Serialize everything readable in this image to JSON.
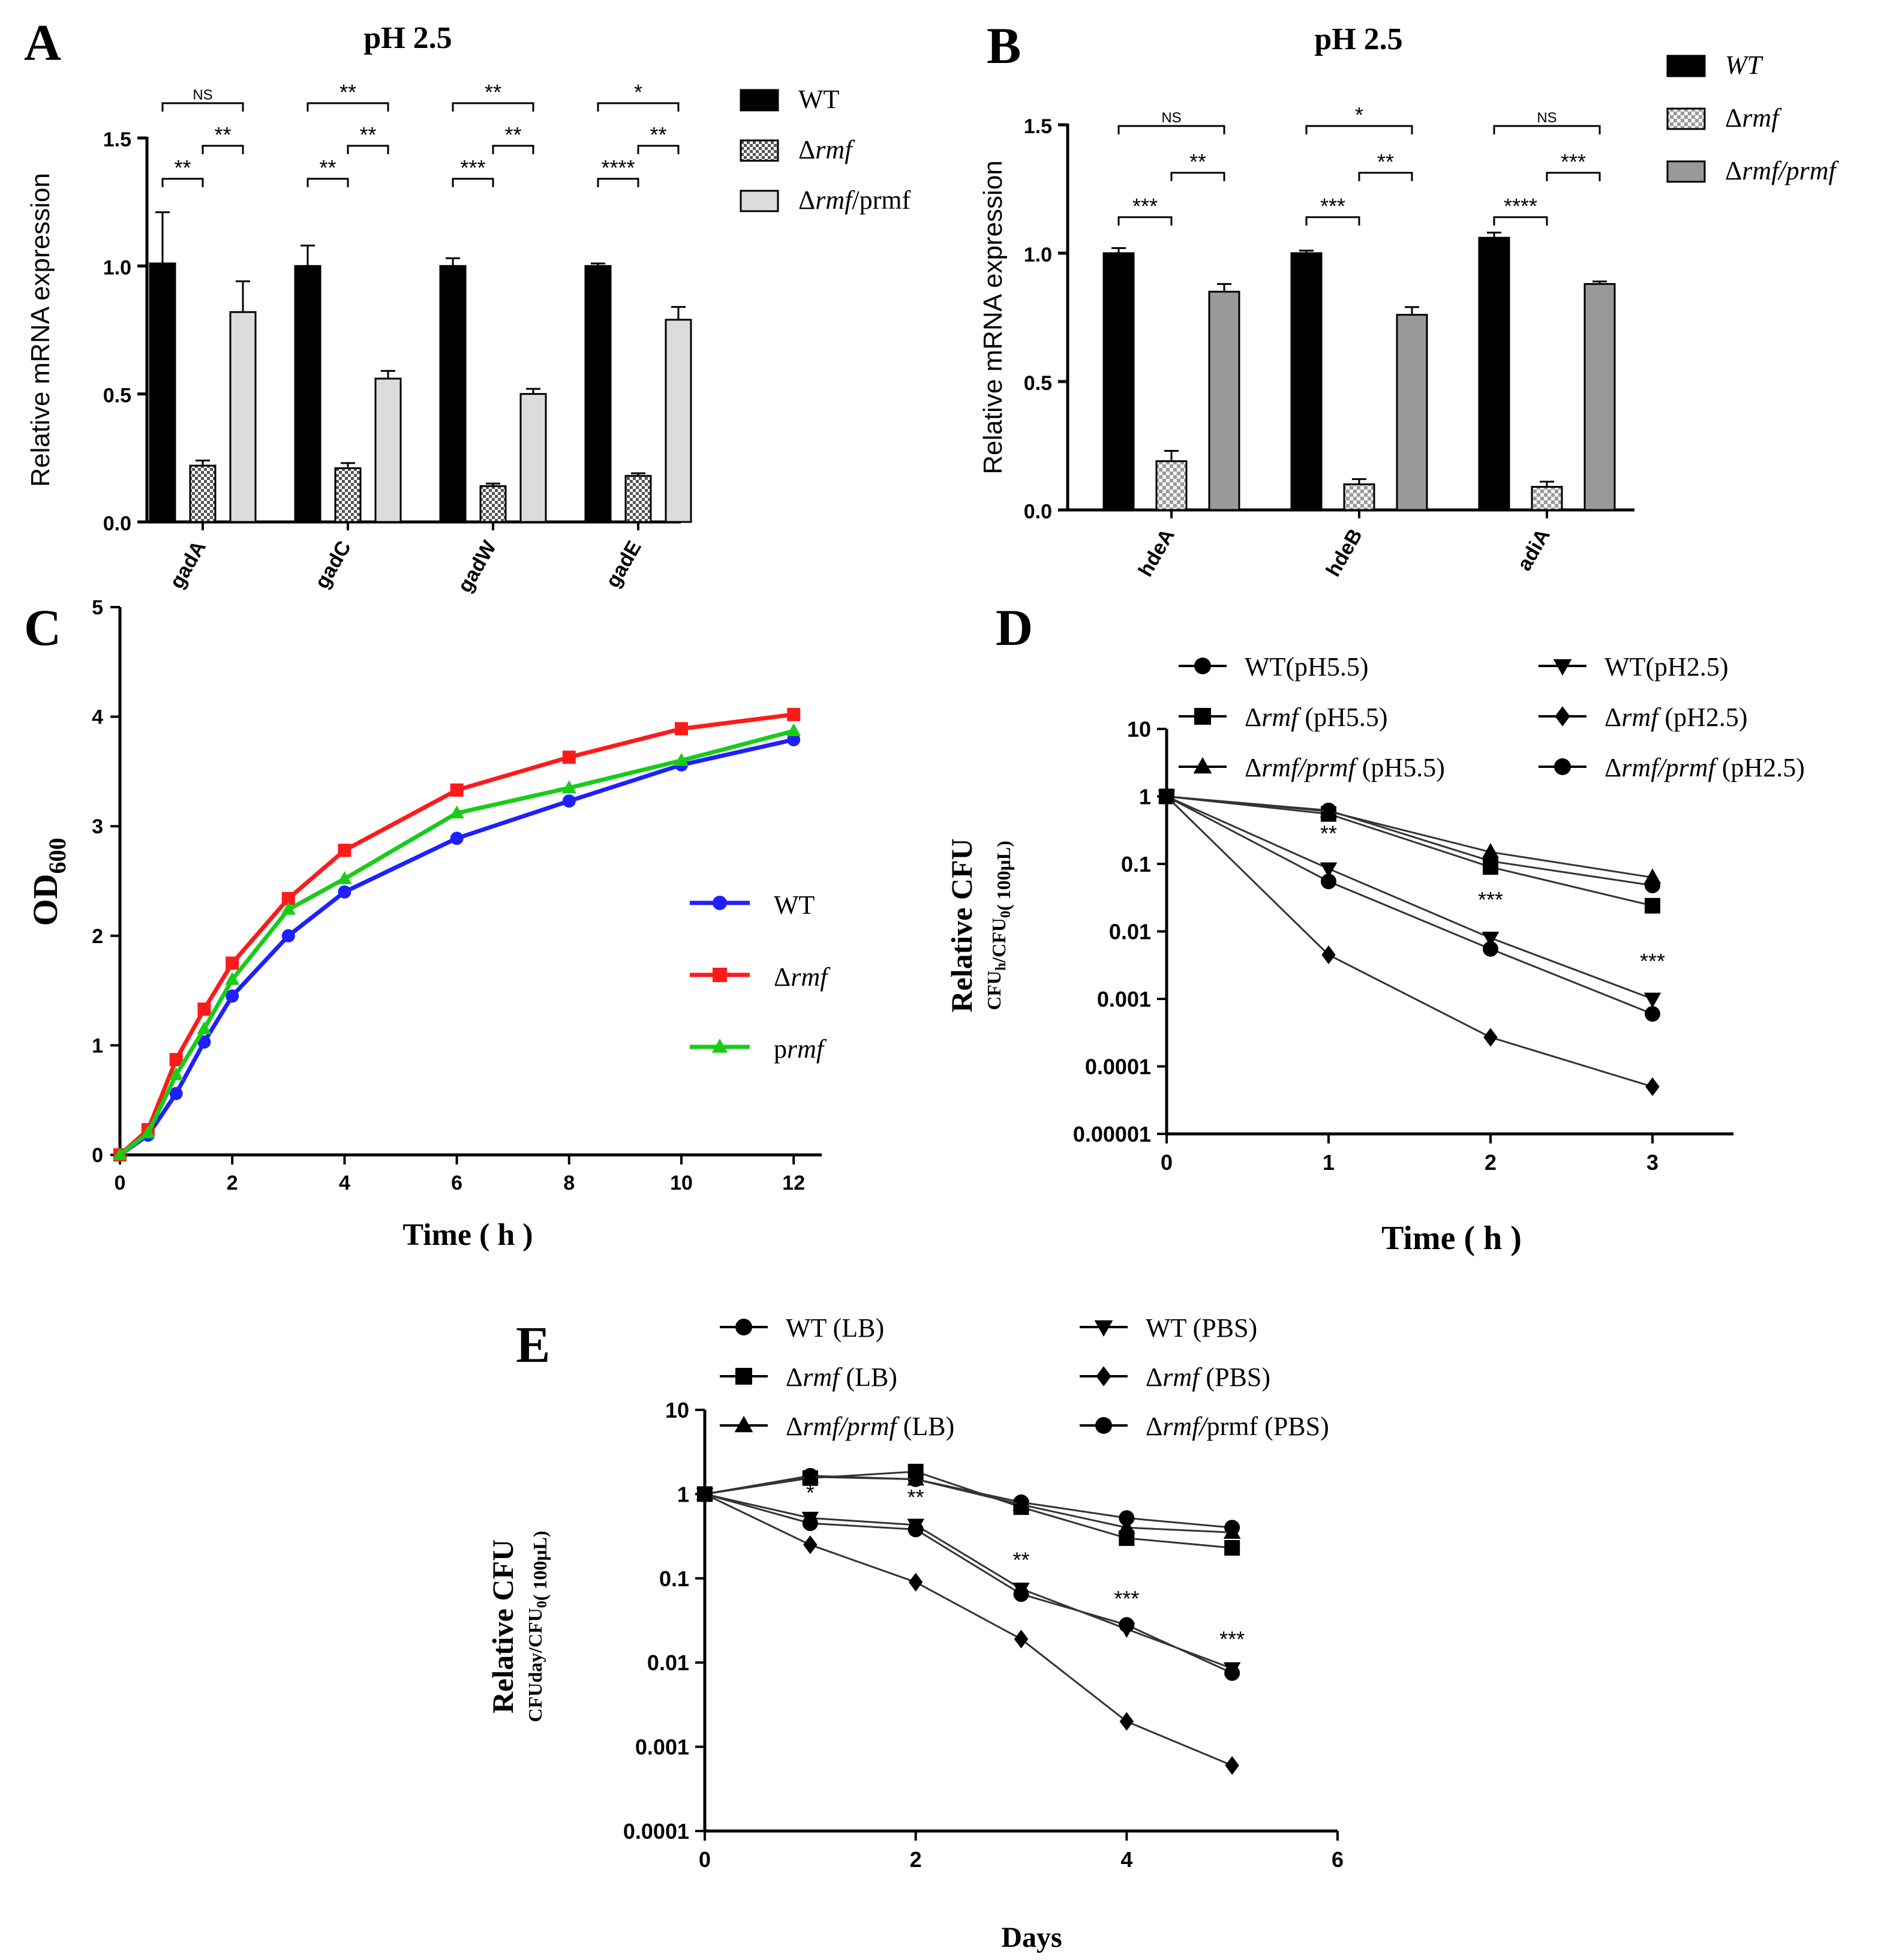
{
  "chart_data": [
    {
      "panel": "A",
      "type": "bar",
      "title": "pH  2.5",
      "ylabel": "Relative mRNA expression",
      "ylim": [
        0,
        1.5
      ],
      "yticks": [
        "0.0",
        "0.5",
        "1.0",
        "1.5"
      ],
      "categories": [
        "gadA",
        "gadC",
        "gadW",
        "gadE"
      ],
      "series": [
        {
          "name": "WT",
          "values": [
            1.01,
            1.0,
            1.0,
            1.0
          ],
          "errors": [
            0.2,
            0.08,
            0.03,
            0.01
          ],
          "color": "#000000"
        },
        {
          "name": "Δrmf",
          "values": [
            0.22,
            0.21,
            0.14,
            0.18
          ],
          "errors": [
            0.02,
            0.02,
            0.01,
            0.01
          ],
          "color": "#b0b0b0"
        },
        {
          "name": "Δrmf/prmf",
          "values": [
            0.82,
            0.56,
            0.5,
            0.79
          ],
          "errors": [
            0.12,
            0.03,
            0.02,
            0.05
          ],
          "color": "#dcdcdc"
        }
      ],
      "legend": [
        {
          "pre": "WT",
          "ital": "",
          "post": ""
        },
        {
          "pre": "Δ",
          "ital": "rmf",
          "post": ""
        },
        {
          "pre": "Δ",
          "ital": "rmf",
          "post": "/prmf"
        }
      ],
      "significance": [
        {
          "wt_ko": "**",
          "ko_comp": "**",
          "wt_comp": "NS"
        },
        {
          "wt_ko": "**",
          "ko_comp": "**",
          "wt_comp": "**"
        },
        {
          "wt_ko": "***",
          "ko_comp": "**",
          "wt_comp": "**"
        },
        {
          "wt_ko": "****",
          "ko_comp": "**",
          "wt_comp": "*"
        }
      ]
    },
    {
      "panel": "B",
      "type": "bar",
      "title": "pH  2.5",
      "ylabel": "Relative mRNA expression",
      "ylim": [
        0,
        1.5
      ],
      "yticks": [
        "0.0",
        "0.5",
        "1.0",
        "1.5"
      ],
      "categories": [
        "hdeA",
        "hdeB",
        "adiA"
      ],
      "series": [
        {
          "name": "WT",
          "values": [
            1.0,
            1.0,
            1.06
          ],
          "errors": [
            0.02,
            0.01,
            0.02
          ],
          "color": "#000000"
        },
        {
          "name": "Δrmf",
          "values": [
            0.19,
            0.1,
            0.09
          ],
          "errors": [
            0.04,
            0.02,
            0.02
          ],
          "color": "#e0e0e0"
        },
        {
          "name": "Δrmf/prmf",
          "values": [
            0.85,
            0.76,
            0.88
          ],
          "errors": [
            0.03,
            0.03,
            0.01
          ],
          "color": "#999999"
        }
      ],
      "legend": [
        {
          "pre": "",
          "ital": "WT",
          "post": ""
        },
        {
          "pre": "Δ",
          "ital": "rmf",
          "post": ""
        },
        {
          "pre": "Δ",
          "ital": "rmf/prmf",
          "post": ""
        }
      ],
      "significance": [
        {
          "wt_ko": "***",
          "ko_comp": "**",
          "wt_comp": "NS"
        },
        {
          "wt_ko": "***",
          "ko_comp": "**",
          "wt_comp": "*"
        },
        {
          "wt_ko": "****",
          "ko_comp": "***",
          "wt_comp": "NS"
        }
      ]
    },
    {
      "panel": "C",
      "type": "line",
      "title": "",
      "xlabel": "Time ( h )",
      "ylabel_main": "OD",
      "ylabel_sub": "600",
      "xlim": [
        0,
        12.5
      ],
      "ylim": [
        0,
        5
      ],
      "xticks": [
        "0",
        "2",
        "4",
        "6",
        "8",
        "10",
        "12"
      ],
      "yticks": [
        "0",
        "1",
        "2",
        "3",
        "4",
        "5"
      ],
      "x": [
        0,
        0.5,
        1,
        1.5,
        2,
        3,
        4,
        6,
        8,
        10,
        12
      ],
      "series": [
        {
          "name": "WT",
          "color": "#1f1fff",
          "marker": "circle",
          "values": [
            0,
            0.18,
            0.56,
            1.03,
            1.45,
            2.0,
            2.4,
            2.89,
            3.23,
            3.56,
            3.79
          ]
        },
        {
          "name": "Δrmf",
          "color": "#ff1a1a",
          "marker": "square",
          "values": [
            0,
            0.23,
            0.87,
            1.33,
            1.75,
            2.34,
            2.78,
            3.33,
            3.63,
            3.89,
            4.02
          ]
        },
        {
          "name": "prmf",
          "color": "#18cc18",
          "marker": "triangle",
          "values": [
            0,
            0.2,
            0.73,
            1.15,
            1.6,
            2.24,
            2.52,
            3.12,
            3.35,
            3.6,
            3.87
          ]
        }
      ],
      "legend": [
        {
          "pre": "WT",
          "ital": "",
          "post": ""
        },
        {
          "pre": "Δ",
          "ital": "rmf",
          "post": ""
        },
        {
          "pre": "p",
          "ital": "rmf",
          "post": ""
        }
      ]
    },
    {
      "panel": "D",
      "type": "line",
      "scale": "log",
      "xlabel": "Time ( h )",
      "ylabel_main": "Relative CFU",
      "ylabel_sub": "CFU<sub>h</sub>/CFU<sub>0</sub>( 100μL)",
      "xlim": [
        0,
        3.5
      ],
      "ylim_log": [
        -5,
        1
      ],
      "xticks": [
        "0",
        "1",
        "2",
        "3"
      ],
      "yticks": [
        "10",
        "1",
        "0.1",
        "0.01",
        "0.001",
        "0.0001",
        "0.00001"
      ],
      "x": [
        0,
        1,
        2,
        3
      ],
      "series": [
        {
          "name": "WT(pH5.5)",
          "marker": "circle",
          "values": [
            1,
            0.62,
            0.11,
            0.048
          ]
        },
        {
          "name": "Δrmf(pH5.5)",
          "marker": "square",
          "values": [
            1,
            0.55,
            0.09,
            0.024
          ]
        },
        {
          "name": "Δrmf/prmf(pH5.5)",
          "marker": "triangle",
          "values": [
            1,
            0.6,
            0.15,
            0.063
          ]
        },
        {
          "name": "WT(pH2.5)",
          "marker": "triangle-down",
          "values": [
            1,
            0.085,
            0.008,
            0.001
          ]
        },
        {
          "name": "Δrmf(pH2.5)",
          "marker": "diamond",
          "values": [
            1,
            0.0045,
            0.00027,
            5e-05
          ]
        },
        {
          "name": "Δrmf/prmf(pH2.5)",
          "marker": "circle",
          "values": [
            1,
            0.055,
            0.0055,
            0.0006
          ]
        }
      ],
      "legend": [
        {
          "pre": "WT(pH5.5)",
          "ital": "",
          "post": ""
        },
        {
          "pre": "Δ",
          "ital": "rmf",
          "post": " (pH5.5)"
        },
        {
          "pre": "Δ",
          "ital": "rmf/prmf",
          "post": " (pH5.5)"
        },
        {
          "pre": "WT(pH2.5)",
          "ital": "",
          "post": ""
        },
        {
          "pre": "Δ",
          "ital": "rmf",
          "post": " (pH2.5)"
        },
        {
          "pre": "Δ",
          "ital": "rmf/prmf",
          "post": " (pH2.5)"
        }
      ],
      "annotations": [
        {
          "x": 1,
          "y": 0.22,
          "text": "**"
        },
        {
          "x": 2,
          "y": 0.023,
          "text": "***"
        },
        {
          "x": 3,
          "y": 0.0028,
          "text": "***"
        }
      ]
    },
    {
      "panel": "E",
      "type": "line",
      "scale": "log",
      "xlabel": "Days",
      "ylabel_main": "Relative CFU",
      "ylabel_sub": "CFUday/CFU<sub>0</sub>( 100μL)",
      "xlim": [
        0,
        6
      ],
      "ylim_log": [
        -4,
        1
      ],
      "xticks": [
        "0",
        "2",
        "4",
        "6"
      ],
      "yticks": [
        "10",
        "1",
        "0.1",
        "0.01",
        "0.001",
        "0.0001"
      ],
      "x": [
        0,
        1,
        2,
        3,
        4,
        5
      ],
      "series": [
        {
          "name": "WT (LB)",
          "marker": "circle",
          "values": [
            1,
            1.65,
            1.5,
            0.8,
            0.52,
            0.4
          ]
        },
        {
          "name": "Δrmf (LB)",
          "marker": "square",
          "values": [
            1,
            1.55,
            1.85,
            0.7,
            0.3,
            0.23
          ]
        },
        {
          "name": "Δrmf/prmf (LB)",
          "marker": "triangle",
          "values": [
            1,
            1.6,
            1.5,
            0.75,
            0.4,
            0.35
          ]
        },
        {
          "name": "WT (PBS)",
          "marker": "triangle-down",
          "values": [
            1,
            0.52,
            0.43,
            0.075,
            0.025,
            0.0085
          ]
        },
        {
          "name": "Δrmf (PBS)",
          "marker": "diamond",
          "values": [
            1,
            0.25,
            0.09,
            0.019,
            0.002,
            0.0006
          ]
        },
        {
          "name": "Δrmf/prmf (PBS)",
          "marker": "circle",
          "values": [
            1,
            0.45,
            0.38,
            0.065,
            0.028,
            0.0075
          ]
        }
      ],
      "legend": [
        {
          "pre": "WT (LB)",
          "ital": "",
          "post": ""
        },
        {
          "pre": "Δ",
          "ital": "rmf",
          "post": " (LB)"
        },
        {
          "pre": "Δ",
          "ital": "rmf/prmf",
          "post": " (LB)"
        },
        {
          "pre": "WT (PBS)",
          "ital": "",
          "post": ""
        },
        {
          "pre": "Δ",
          "ital": "rmf",
          "post": " (PBS)"
        },
        {
          "pre": "Δ",
          "ital": "rmf/",
          "post": "prmf (PBS)"
        }
      ],
      "annotations": [
        {
          "x": 1,
          "y": 0.85,
          "text": "*"
        },
        {
          "x": 2,
          "y": 0.75,
          "text": "**"
        },
        {
          "x": 3,
          "y": 0.135,
          "text": "**"
        },
        {
          "x": 4,
          "y": 0.047,
          "text": "***"
        },
        {
          "x": 5,
          "y": 0.0155,
          "text": "***"
        }
      ]
    }
  ]
}
